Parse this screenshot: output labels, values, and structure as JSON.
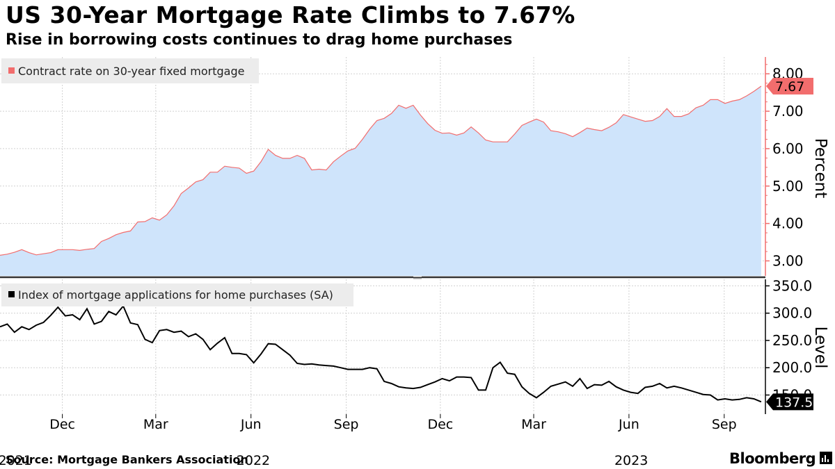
{
  "title": "US 30-Year Mortgage Rate Climbs to 7.67%",
  "subtitle": "Rise in borrowing costs continues to drag home purchases",
  "source": "Source: Mortgage Bankers Association",
  "brand": "Bloomberg",
  "colors": {
    "rate_line": "#f26d6d",
    "rate_fill": "#cfe4fb",
    "index_line": "#000000",
    "grid": "#d0d0d0",
    "legend_bg": "#ececec"
  },
  "chart_data": [
    {
      "type": "area",
      "legend": "Contract rate on 30-year fixed mortgage",
      "ylabel": "Percent",
      "ylim": [
        2.6,
        8.45
      ],
      "yticks": [
        "3.00",
        "4.00",
        "5.00",
        "6.00",
        "7.00",
        "8.00"
      ],
      "last_value_label": "7.67",
      "x_start": 2021.75,
      "x_step": 0.019178,
      "values": [
        3.15,
        3.18,
        3.23,
        3.3,
        3.22,
        3.16,
        3.19,
        3.22,
        3.3,
        3.3,
        3.3,
        3.28,
        3.31,
        3.33,
        3.52,
        3.6,
        3.7,
        3.76,
        3.8,
        4.04,
        4.05,
        4.15,
        4.09,
        4.23,
        4.47,
        4.8,
        4.95,
        5.11,
        5.17,
        5.37,
        5.37,
        5.53,
        5.5,
        5.48,
        5.34,
        5.4,
        5.65,
        5.98,
        5.82,
        5.74,
        5.74,
        5.82,
        5.74,
        5.43,
        5.45,
        5.43,
        5.65,
        5.8,
        5.94,
        6.01,
        6.25,
        6.52,
        6.75,
        6.81,
        6.94,
        7.16,
        7.08,
        7.16,
        6.9,
        6.67,
        6.49,
        6.41,
        6.42,
        6.36,
        6.42,
        6.58,
        6.42,
        6.23,
        6.18,
        6.18,
        6.18,
        6.39,
        6.62,
        6.71,
        6.79,
        6.71,
        6.48,
        6.45,
        6.4,
        6.32,
        6.43,
        6.55,
        6.51,
        6.48,
        6.57,
        6.69,
        6.91,
        6.85,
        6.79,
        6.73,
        6.75,
        6.86,
        7.07,
        6.86,
        6.86,
        6.93,
        7.09,
        7.16,
        7.31,
        7.31,
        7.21,
        7.27,
        7.31,
        7.41,
        7.53,
        7.67
      ]
    },
    {
      "type": "line",
      "legend": "Index of mortgage applications for home purchases (SA)",
      "ylabel": "Level",
      "ylim": [
        115,
        362
      ],
      "yticks": [
        "150.0",
        "200.0",
        "250.0",
        "300.0",
        "350.0"
      ],
      "last_value_label": "137.5",
      "x_start": 2021.75,
      "x_step": 0.019178,
      "values": [
        275,
        280,
        265,
        275,
        270,
        278,
        283,
        296,
        311,
        295,
        297,
        288,
        308,
        280,
        285,
        303,
        297,
        313,
        282,
        279,
        252,
        246,
        268,
        270,
        265,
        267,
        257,
        262,
        252,
        233,
        245,
        255,
        226,
        226,
        224,
        209,
        225,
        244,
        243,
        233,
        223,
        208,
        206,
        207,
        205,
        204,
        203,
        200,
        197,
        197,
        197,
        200,
        198,
        175,
        171,
        165,
        163,
        162,
        164,
        169,
        174,
        180,
        176,
        183,
        183,
        182,
        159,
        159,
        200,
        210,
        190,
        188,
        165,
        153,
        145,
        155,
        166,
        170,
        174,
        166,
        180,
        162,
        169,
        168,
        175,
        165,
        159,
        155,
        153,
        164,
        166,
        171,
        163,
        166,
        163,
        159,
        155,
        151,
        150,
        141,
        143,
        141,
        142,
        145,
        143,
        137.5
      ]
    }
  ],
  "x_axis": {
    "months": [
      {
        "label": "Dec",
        "x": 2021.915
      },
      {
        "label": "Mar",
        "x": 2022.162
      },
      {
        "label": "Jun",
        "x": 2022.414
      },
      {
        "label": "Sep",
        "x": 2022.666
      },
      {
        "label": "Dec",
        "x": 2022.915
      },
      {
        "label": "Mar",
        "x": 2023.162
      },
      {
        "label": "Jun",
        "x": 2023.414
      },
      {
        "label": "Sep",
        "x": 2023.666
      }
    ],
    "years": [
      {
        "label": "2021",
        "x": 2021.79
      },
      {
        "label": "2022",
        "x": 2022.42
      },
      {
        "label": "2023",
        "x": 2023.42
      }
    ],
    "xlim": [
      2021.75,
      2023.775
    ]
  }
}
